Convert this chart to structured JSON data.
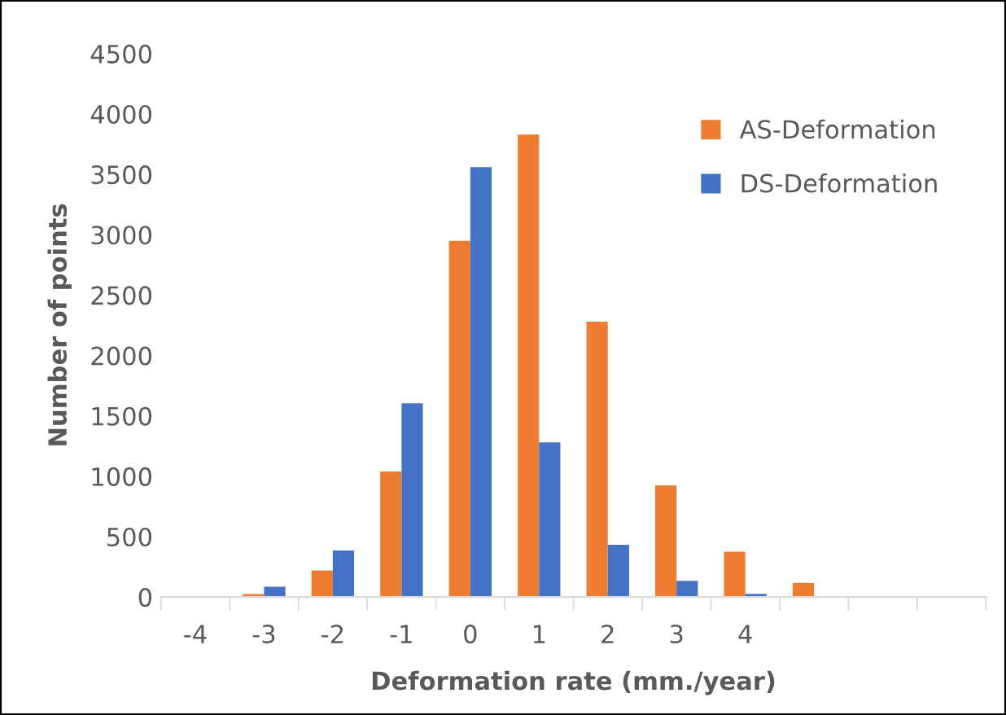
{
  "chart_data": {
    "type": "bar",
    "xlabel": "Deformation rate (mm./year)",
    "ylabel": "Number of points",
    "categories": [
      "-4",
      "-3",
      "-2",
      "-1",
      "0",
      "1",
      "2",
      "3",
      "4",
      null,
      null,
      null
    ],
    "series": [
      {
        "name": "AS-Deformation",
        "color": "#ed7d31",
        "values": [
          0,
          25,
          220,
          1040,
          2950,
          3830,
          2280,
          925,
          375,
          118,
          0,
          0
        ]
      },
      {
        "name": "DS-Deformation",
        "color": "#4472c4",
        "values": [
          0,
          85,
          385,
          1605,
          3560,
          1280,
          433,
          134,
          27,
          0,
          0,
          0
        ]
      }
    ],
    "ylim": [
      0,
      4500
    ],
    "yticks": [
      0,
      500,
      1000,
      1500,
      2000,
      2500,
      3000,
      3500,
      4000,
      4500
    ],
    "grid": false,
    "legend": "top right"
  }
}
